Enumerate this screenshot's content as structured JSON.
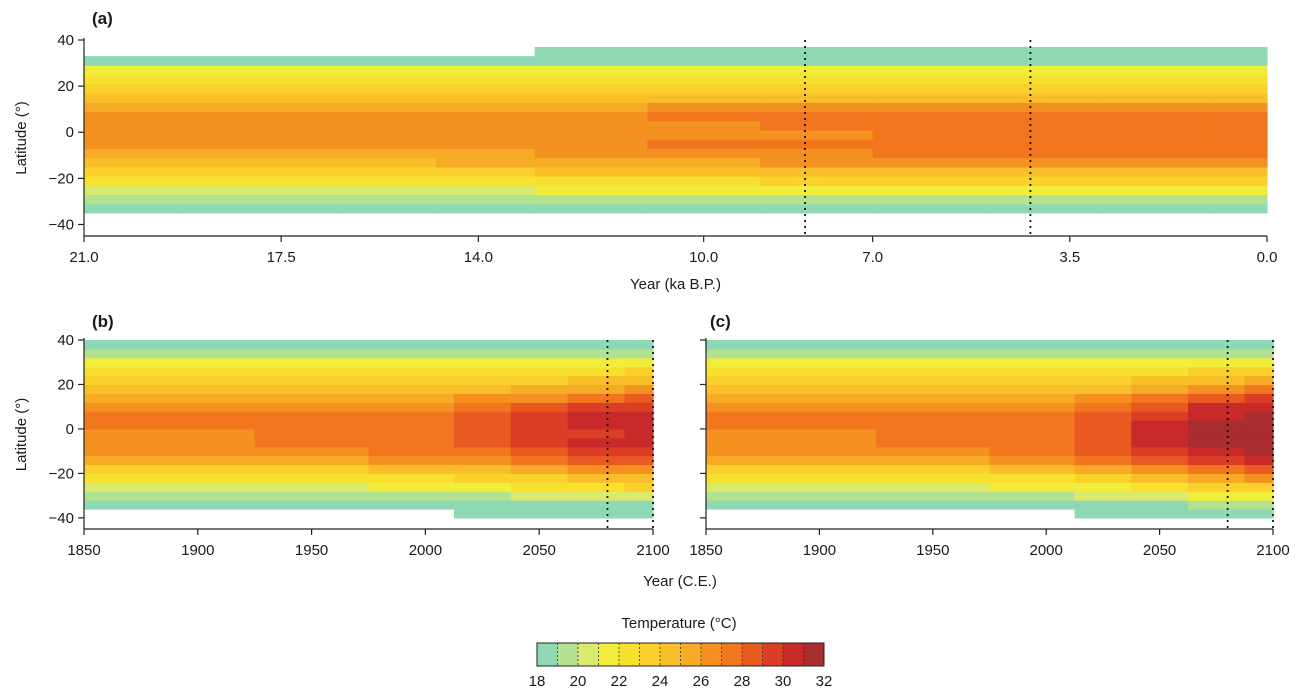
{
  "chart_data": [
    {
      "panel": "(a)",
      "type": "heatmap",
      "xlabel": "Year (ka B.P.)",
      "ylabel": "Latitude (°)",
      "xlim": [
        21.0,
        0.0
      ],
      "ylim": [
        -45,
        40
      ],
      "x_ticks": [
        "21.0",
        "17.5",
        "14.0",
        "10.0",
        "7.0",
        "3.5",
        "0.0"
      ],
      "y_ticks": [
        "40",
        "20",
        "0",
        "−20",
        "−40"
      ],
      "vlines": [
        8.2,
        4.2
      ],
      "lat_rows": [
        -33,
        -29,
        -25,
        -21,
        -17,
        -13,
        -9,
        -5,
        -1,
        3,
        7,
        11,
        15,
        19,
        23,
        27,
        31,
        35
      ],
      "x_cols": [
        21.0,
        17.5,
        15.5,
        14.0,
        12.0,
        10.0,
        8.0,
        6.0,
        4.0,
        2.0,
        0.0
      ],
      "values": [
        [
          18,
          18,
          18,
          18,
          18,
          18,
          18,
          18,
          18,
          18,
          18
        ],
        [
          19,
          19,
          19,
          19,
          19,
          19,
          19,
          19,
          19,
          19,
          19
        ],
        [
          20,
          20,
          20,
          20,
          21,
          21,
          21,
          21,
          21,
          21,
          21
        ],
        [
          22,
          22,
          22,
          22,
          22,
          22,
          23,
          23,
          23,
          23,
          23
        ],
        [
          23,
          23,
          23,
          23,
          24,
          24,
          24,
          24,
          24,
          24,
          24
        ],
        [
          24,
          24,
          24,
          25,
          25,
          25,
          26,
          26,
          26,
          26,
          26
        ],
        [
          25,
          25,
          25,
          25,
          26,
          26,
          26,
          27,
          27,
          27,
          27
        ],
        [
          26,
          26,
          26,
          26,
          26,
          27,
          27,
          27,
          27,
          27,
          27
        ],
        [
          26,
          26,
          26,
          26,
          26,
          26,
          26,
          27,
          27,
          27,
          27
        ],
        [
          26,
          26,
          26,
          26,
          26,
          26,
          27,
          27,
          27,
          27,
          27
        ],
        [
          26,
          26,
          26,
          26,
          26,
          27,
          27,
          27,
          27,
          27,
          27
        ],
        [
          25,
          25,
          25,
          25,
          25,
          26,
          26,
          26,
          26,
          26,
          26
        ],
        [
          24,
          24,
          24,
          24,
          24,
          24,
          24,
          24,
          24,
          24,
          24
        ],
        [
          23,
          23,
          23,
          23,
          23,
          23,
          23,
          23,
          23,
          23,
          23
        ],
        [
          22,
          22,
          22,
          22,
          22,
          22,
          22,
          22,
          22,
          22,
          22
        ],
        [
          21,
          21,
          21,
          21,
          21,
          21,
          21,
          21,
          21,
          21,
          21
        ],
        [
          18,
          18,
          18,
          18,
          18,
          18,
          18,
          18,
          18,
          18,
          18
        ],
        [
          null,
          null,
          null,
          null,
          18,
          18,
          18,
          18,
          18,
          18,
          18
        ]
      ]
    },
    {
      "panel": "(b)",
      "type": "heatmap",
      "xlabel": "",
      "ylabel": "Latitude (°)",
      "xlim": [
        1850,
        2100
      ],
      "ylim": [
        -45,
        40
      ],
      "x_ticks": [
        "1850",
        "1900",
        "1950",
        "2000",
        "2050",
        "2100"
      ],
      "y_ticks": [
        "40",
        "20",
        "0",
        "−20",
        "−40"
      ],
      "vlines": [
        2080,
        2100
      ],
      "lat_rows": [
        -38,
        -34,
        -30,
        -26,
        -22,
        -18,
        -14,
        -10,
        -6,
        -2,
        2,
        6,
        10,
        14,
        18,
        22,
        26,
        30,
        34,
        38
      ],
      "x_cols": [
        1850,
        1900,
        1950,
        2000,
        2025,
        2050,
        2075,
        2100
      ],
      "values": [
        [
          null,
          null,
          null,
          null,
          18,
          18,
          18,
          18
        ],
        [
          18,
          18,
          18,
          18,
          18,
          18,
          18,
          18
        ],
        [
          19,
          19,
          19,
          19,
          19,
          20,
          20,
          20
        ],
        [
          20,
          20,
          20,
          21,
          21,
          22,
          22,
          23
        ],
        [
          22,
          22,
          22,
          22,
          23,
          23,
          24,
          24
        ],
        [
          23,
          23,
          23,
          24,
          24,
          25,
          26,
          26
        ],
        [
          25,
          25,
          25,
          26,
          26,
          27,
          28,
          28
        ],
        [
          26,
          26,
          26,
          27,
          27,
          28,
          29,
          29
        ],
        [
          26,
          26,
          27,
          27,
          28,
          29,
          30,
          30
        ],
        [
          26,
          26,
          27,
          27,
          28,
          29,
          29,
          30
        ],
        [
          27,
          27,
          27,
          27,
          28,
          29,
          30,
          30
        ],
        [
          27,
          27,
          27,
          27,
          28,
          29,
          30,
          30
        ],
        [
          26,
          26,
          26,
          26,
          27,
          28,
          29,
          29
        ],
        [
          25,
          25,
          25,
          25,
          26,
          26,
          27,
          28
        ],
        [
          24,
          24,
          24,
          24,
          24,
          25,
          25,
          26
        ],
        [
          23,
          23,
          23,
          23,
          23,
          23,
          24,
          24
        ],
        [
          22,
          22,
          22,
          22,
          22,
          22,
          22,
          23
        ],
        [
          21,
          21,
          21,
          21,
          21,
          21,
          21,
          21
        ],
        [
          19,
          19,
          19,
          19,
          19,
          19,
          19,
          19
        ],
        [
          18,
          18,
          18,
          18,
          18,
          18,
          18,
          18
        ]
      ]
    },
    {
      "panel": "(c)",
      "type": "heatmap",
      "xlabel": "",
      "ylabel": "",
      "xlim": [
        1850,
        2100
      ],
      "ylim": [
        -45,
        40
      ],
      "x_ticks": [
        "1850",
        "1900",
        "1950",
        "2000",
        "2050",
        "2100"
      ],
      "vlines": [
        2080,
        2100
      ],
      "lat_rows": [
        -38,
        -34,
        -30,
        -26,
        -22,
        -18,
        -14,
        -10,
        -6,
        -2,
        2,
        6,
        10,
        14,
        18,
        22,
        26,
        30,
        34,
        38
      ],
      "x_cols": [
        1850,
        1900,
        1950,
        2000,
        2025,
        2050,
        2075,
        2100
      ],
      "values": [
        [
          null,
          null,
          null,
          null,
          18,
          18,
          18,
          18
        ],
        [
          18,
          18,
          18,
          18,
          18,
          18,
          19,
          19
        ],
        [
          19,
          19,
          19,
          19,
          20,
          20,
          21,
          21
        ],
        [
          20,
          20,
          20,
          21,
          21,
          22,
          23,
          23
        ],
        [
          22,
          22,
          22,
          22,
          23,
          24,
          25,
          26
        ],
        [
          23,
          23,
          23,
          24,
          25,
          26,
          27,
          28
        ],
        [
          25,
          25,
          25,
          26,
          27,
          28,
          29,
          30
        ],
        [
          26,
          26,
          26,
          27,
          28,
          29,
          30,
          31
        ],
        [
          26,
          26,
          27,
          27,
          28,
          30,
          31,
          31
        ],
        [
          26,
          26,
          27,
          27,
          28,
          30,
          31,
          31
        ],
        [
          27,
          27,
          27,
          27,
          28,
          30,
          31,
          31
        ],
        [
          27,
          27,
          27,
          27,
          28,
          29,
          30,
          31
        ],
        [
          26,
          26,
          26,
          26,
          27,
          28,
          30,
          30
        ],
        [
          25,
          25,
          25,
          25,
          26,
          27,
          28,
          29
        ],
        [
          24,
          24,
          24,
          24,
          24,
          25,
          26,
          27
        ],
        [
          23,
          23,
          23,
          23,
          23,
          24,
          24,
          25
        ],
        [
          22,
          22,
          22,
          22,
          22,
          22,
          23,
          23
        ],
        [
          21,
          21,
          21,
          21,
          21,
          21,
          21,
          21
        ],
        [
          19,
          19,
          19,
          19,
          19,
          19,
          19,
          19
        ],
        [
          18,
          18,
          18,
          18,
          18,
          18,
          18,
          18
        ]
      ]
    }
  ],
  "shared_xlabel_bc": "Year (C.E.)",
  "colorbar": {
    "title": "Temperature (°C)",
    "min": 18,
    "max": 32,
    "tick_labels": [
      "18",
      "20",
      "22",
      "24",
      "26",
      "28",
      "30",
      "32"
    ],
    "colors": [
      "#8ed8b4",
      "#b2e28f",
      "#d9ea6c",
      "#f2ec3a",
      "#f8e12e",
      "#fad12c",
      "#f9bf29",
      "#f7aa25",
      "#f49120",
      "#f1761d",
      "#e95a20",
      "#dc3e25",
      "#c82a2a",
      "#a92c2f"
    ]
  }
}
